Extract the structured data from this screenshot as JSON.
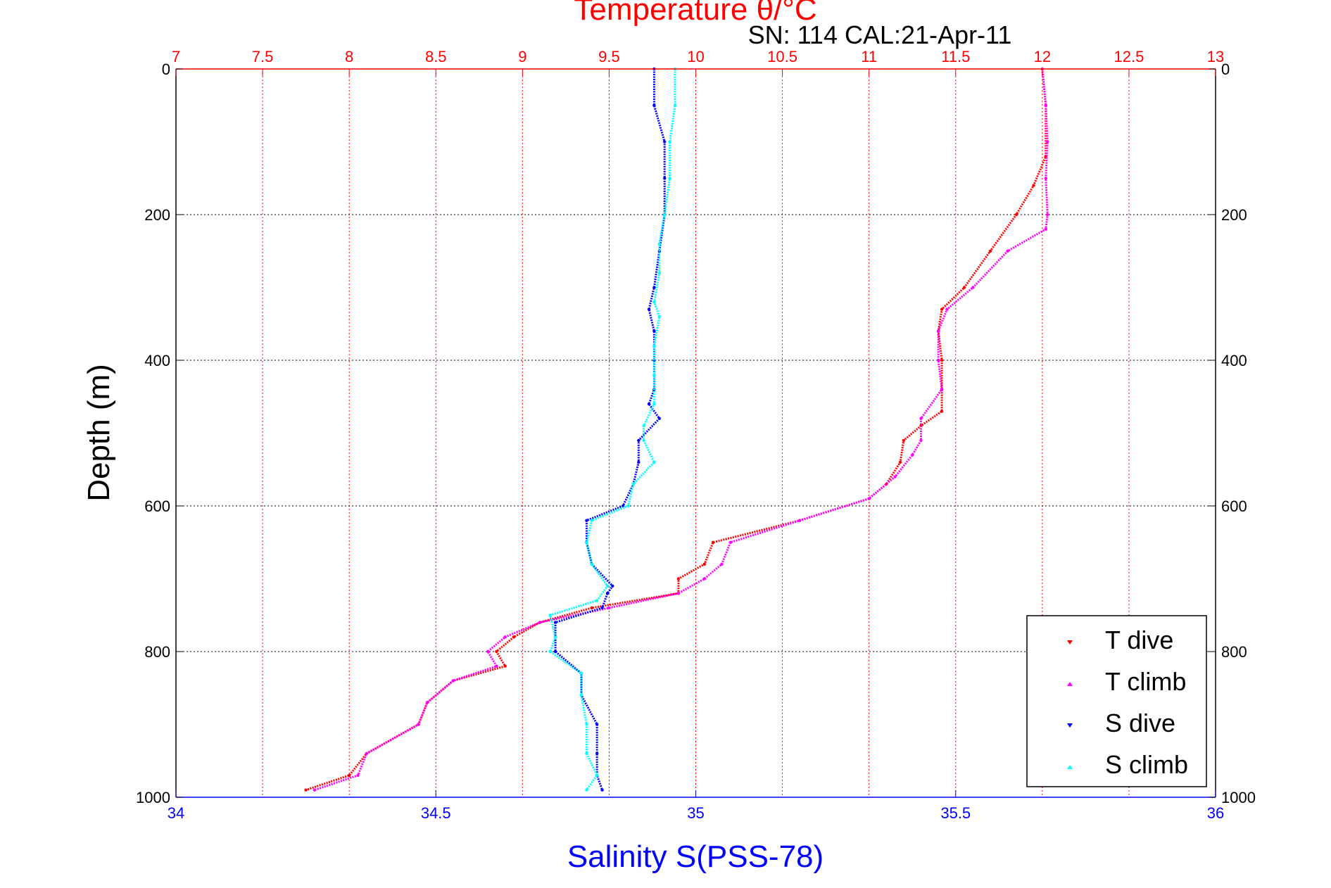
{
  "chart_data": {
    "type": "scatter",
    "title": "Temperature θ/°C",
    "subtitle": "SN: 114  CAL:21-Apr-11",
    "ylabel": "Depth (m)",
    "xlabel_bottom": "Salinity S(PSS-78)",
    "xlabel_top": "Temperature θ/°C",
    "ylim": [
      1000,
      0
    ],
    "y_reversed": true,
    "y_ticks": [
      0,
      200,
      400,
      600,
      800,
      1000
    ],
    "temperature_axis": {
      "position": "top",
      "range": [
        7,
        13
      ],
      "ticks": [
        7,
        7.5,
        8,
        8.5,
        9,
        9.5,
        10,
        10.5,
        11,
        11.5,
        12,
        12.5,
        13
      ],
      "color": "#ff0000"
    },
    "salinity_axis": {
      "position": "bottom",
      "range": [
        34,
        36
      ],
      "ticks": [
        34,
        34.5,
        35,
        35.5,
        36
      ],
      "color": "#0000ff"
    },
    "grid": true,
    "legend_position": "bottom-right",
    "series": [
      {
        "name": "T dive",
        "axis": "temperature",
        "color": "#ff0000",
        "depth": [
          0,
          50,
          120,
          160,
          200,
          250,
          300,
          330,
          360,
          400,
          440,
          470,
          490,
          510,
          540,
          570,
          590,
          620,
          650,
          680,
          700,
          720,
          740,
          760,
          780,
          800,
          820,
          840,
          870,
          900,
          940,
          970,
          990
        ],
        "values": [
          12.0,
          12.02,
          12.02,
          11.95,
          11.85,
          11.7,
          11.55,
          11.42,
          11.4,
          11.42,
          11.42,
          11.42,
          11.3,
          11.2,
          11.18,
          11.1,
          11.0,
          10.6,
          10.1,
          10.05,
          9.9,
          9.9,
          9.4,
          9.1,
          8.95,
          8.85,
          8.9,
          8.6,
          8.45,
          8.4,
          8.1,
          8.0,
          7.75
        ]
      },
      {
        "name": "T climb",
        "axis": "temperature",
        "color": "#ff00ff",
        "depth": [
          0,
          50,
          100,
          150,
          200,
          220,
          250,
          300,
          330,
          360,
          400,
          440,
          480,
          510,
          530,
          560,
          590,
          620,
          650,
          680,
          700,
          720,
          740,
          760,
          780,
          800,
          820,
          840,
          870,
          900,
          940,
          970,
          990
        ],
        "values": [
          12.0,
          12.02,
          12.03,
          12.02,
          12.03,
          12.02,
          11.8,
          11.6,
          11.45,
          11.4,
          11.4,
          11.42,
          11.3,
          11.3,
          11.25,
          11.15,
          11.0,
          10.6,
          10.2,
          10.15,
          10.05,
          9.9,
          9.5,
          9.1,
          8.9,
          8.8,
          8.85,
          8.6,
          8.45,
          8.4,
          8.1,
          8.05,
          7.8
        ]
      },
      {
        "name": "S dive",
        "axis": "salinity",
        "color": "#0000ff",
        "depth": [
          0,
          50,
          100,
          150,
          200,
          250,
          300,
          330,
          360,
          400,
          440,
          460,
          480,
          510,
          540,
          570,
          600,
          620,
          650,
          680,
          710,
          720,
          740,
          760,
          780,
          800,
          830,
          860,
          900,
          940,
          970,
          990
        ],
        "values": [
          34.92,
          34.92,
          34.94,
          34.94,
          34.94,
          34.93,
          34.92,
          34.91,
          34.92,
          34.92,
          34.92,
          34.91,
          34.93,
          34.89,
          34.89,
          34.88,
          34.86,
          34.79,
          34.79,
          34.8,
          34.84,
          34.83,
          34.82,
          34.73,
          34.73,
          34.73,
          34.78,
          34.78,
          34.81,
          34.81,
          34.81,
          34.82
        ]
      },
      {
        "name": "S climb",
        "axis": "salinity",
        "color": "#00ffff",
        "depth": [
          0,
          50,
          100,
          150,
          200,
          240,
          280,
          320,
          340,
          380,
          420,
          460,
          490,
          510,
          540,
          570,
          600,
          620,
          650,
          680,
          710,
          730,
          750,
          780,
          800,
          830,
          860,
          900,
          940,
          970,
          990
        ],
        "values": [
          34.96,
          34.96,
          34.95,
          34.95,
          34.94,
          34.93,
          34.93,
          34.92,
          34.93,
          34.92,
          34.92,
          34.92,
          34.9,
          34.9,
          34.92,
          34.88,
          34.87,
          34.8,
          34.79,
          34.8,
          34.83,
          34.81,
          34.72,
          34.73,
          34.72,
          34.78,
          34.78,
          34.79,
          34.79,
          34.81,
          34.79
        ]
      }
    ]
  }
}
